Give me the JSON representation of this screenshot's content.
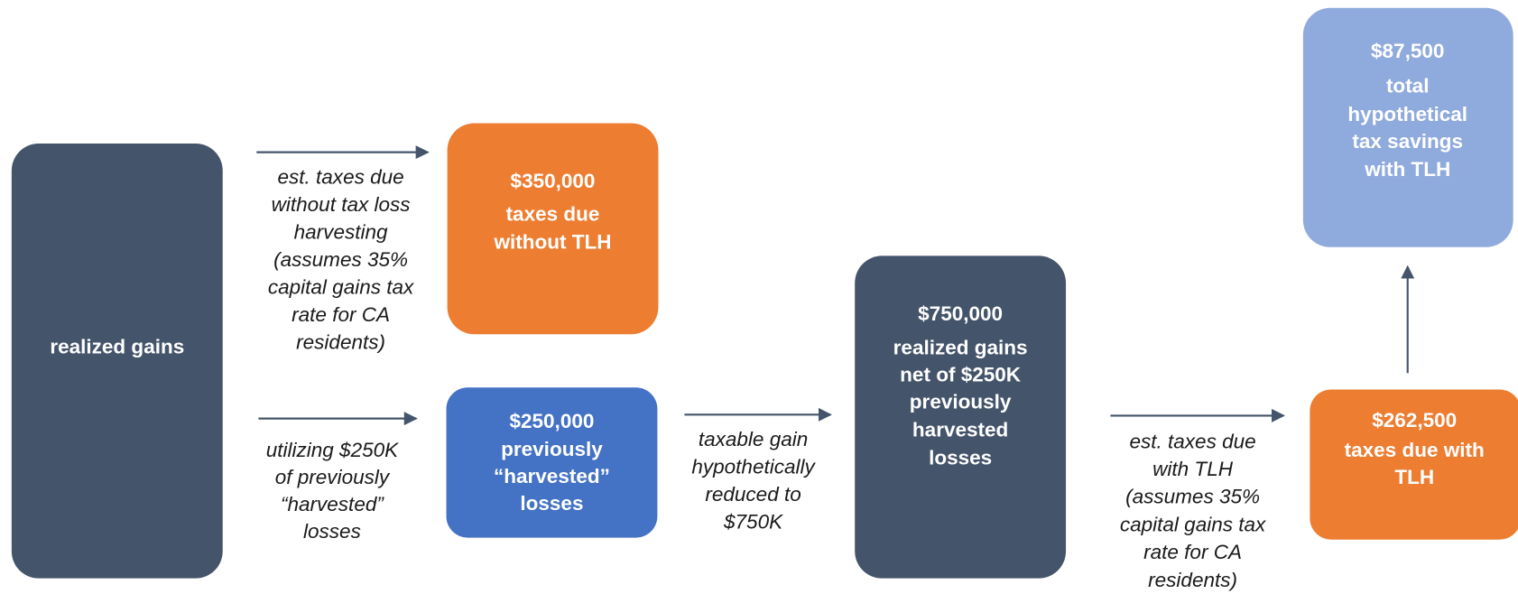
{
  "nodes": [
    {
      "lines": [
        "realized gains"
      ]
    },
    {
      "lines": [
        "$350,000",
        "taxes due",
        "without TLH"
      ]
    },
    {
      "lines": [
        "$250,000",
        "previously",
        "“harvested”",
        "losses"
      ]
    },
    {
      "lines": [
        "$750,000",
        "realized gains",
        "net of $250K",
        "previously",
        "harvested",
        "losses"
      ]
    },
    {
      "lines": [
        "$262,500",
        "taxes due with",
        "TLH"
      ]
    },
    {
      "lines": [
        "$87,500",
        "total",
        "hypothetical",
        "tax savings",
        "with TLH"
      ]
    }
  ],
  "edges": [
    {
      "lines": [
        "est. taxes due",
        "without tax loss",
        "harvesting",
        "(assumes 35%",
        "capital gains tax",
        "rate for CA",
        "residents)"
      ]
    },
    {
      "lines": [
        "utilizing $250K",
        "of previously",
        "“harvested”",
        "losses"
      ]
    },
    {
      "lines": [
        "taxable gain",
        "hypothetically",
        "reduced to",
        "$750K"
      ]
    },
    {
      "lines": [
        "est. taxes due",
        "with TLH",
        "(assumes 35%",
        "capital gains tax",
        "rate for CA",
        "residents)"
      ]
    }
  ]
}
